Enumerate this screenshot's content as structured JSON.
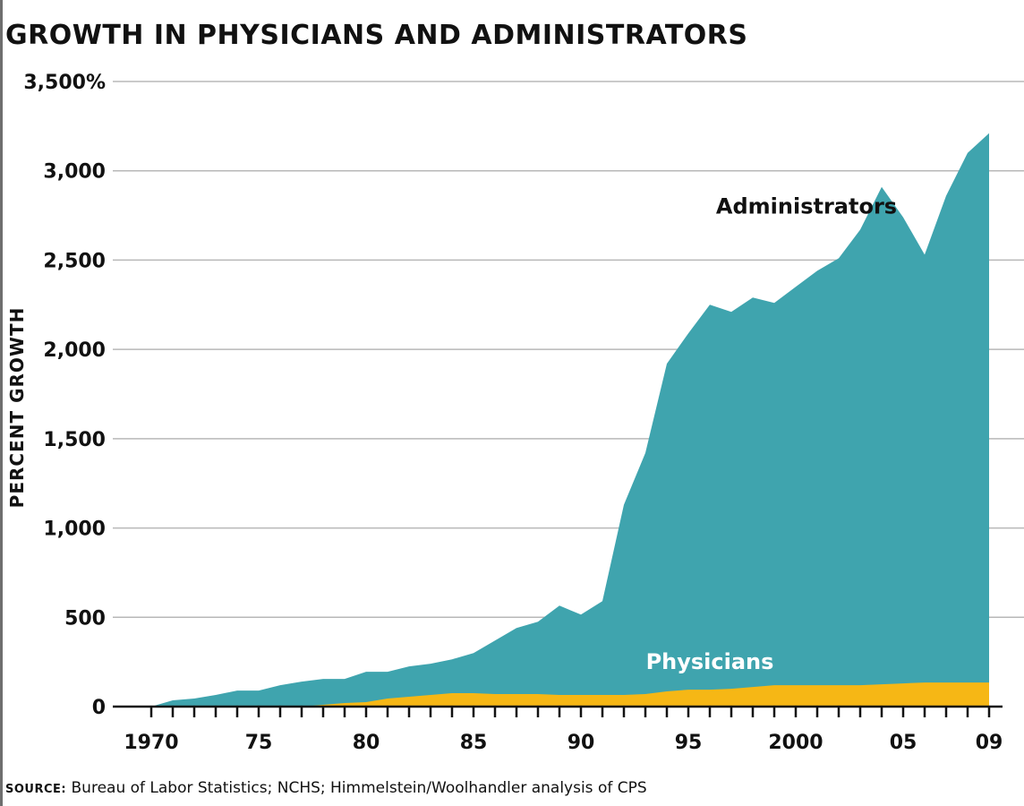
{
  "title": "GROWTH IN PHYSICIANS AND ADMINISTRATORS",
  "source": {
    "key": "SOURCE:",
    "text": "Bureau of Labor Statistics; NCHS; Himmelstein/Woolhandler analysis of CPS"
  },
  "colors": {
    "administrators": "#3fa4ae",
    "physicians": "#f6b715",
    "physicians_label": "#ffffff",
    "administrators_label": "#111111",
    "grid": "#b8b8b8",
    "axis": "#111111"
  },
  "chart_data": {
    "type": "area",
    "stacked": false,
    "title": "GROWTH IN PHYSICIANS AND ADMINISTRATORS",
    "xlabel": "",
    "ylabel": "PERCENT GROWTH",
    "xlim": [
      1970,
      2009
    ],
    "ylim": [
      0,
      3500
    ],
    "grid": true,
    "y_ticks": [
      {
        "value": 0,
        "label": "0"
      },
      {
        "value": 500,
        "label": "500"
      },
      {
        "value": 1000,
        "label": "1,000"
      },
      {
        "value": 1500,
        "label": "1,500"
      },
      {
        "value": 2000,
        "label": "2,000"
      },
      {
        "value": 2500,
        "label": "2,500"
      },
      {
        "value": 3000,
        "label": "3,000"
      },
      {
        "value": 3500,
        "label": "3,500%"
      }
    ],
    "x_ticks": [
      {
        "value": 1970,
        "label": "1970"
      },
      {
        "value": 1975,
        "label": "75"
      },
      {
        "value": 1980,
        "label": "80"
      },
      {
        "value": 1985,
        "label": "85"
      },
      {
        "value": 1990,
        "label": "90"
      },
      {
        "value": 1995,
        "label": "95"
      },
      {
        "value": 2000,
        "label": "2000"
      },
      {
        "value": 2005,
        "label": "05"
      },
      {
        "value": 2009,
        "label": "09"
      }
    ],
    "x": [
      1970,
      1971,
      1972,
      1973,
      1974,
      1975,
      1976,
      1977,
      1978,
      1979,
      1980,
      1981,
      1982,
      1983,
      1984,
      1985,
      1986,
      1987,
      1988,
      1989,
      1990,
      1991,
      1992,
      1993,
      1994,
      1995,
      1996,
      1997,
      1998,
      1999,
      2000,
      2001,
      2002,
      2003,
      2004,
      2005,
      2006,
      2007,
      2008,
      2009
    ],
    "series": [
      {
        "name": "Administrators",
        "values": [
          0,
          35,
          45,
          65,
          90,
          90,
          120,
          140,
          155,
          155,
          195,
          195,
          225,
          240,
          265,
          300,
          370,
          440,
          475,
          565,
          515,
          590,
          1130,
          1420,
          1920,
          2090,
          2250,
          2210,
          2290,
          2260,
          2350,
          2440,
          2510,
          2670,
          2910,
          2740,
          2530,
          2860,
          3100,
          3210
        ]
      },
      {
        "name": "Physicians",
        "values": [
          0,
          0,
          0,
          0,
          0,
          0,
          0,
          0,
          10,
          20,
          25,
          45,
          55,
          65,
          75,
          75,
          70,
          70,
          70,
          65,
          65,
          65,
          65,
          70,
          85,
          95,
          95,
          100,
          110,
          120,
          120,
          120,
          120,
          120,
          125,
          130,
          135,
          135,
          135,
          135
        ]
      }
    ],
    "annotations": [
      {
        "text": "Administrators",
        "series": "Administrators",
        "x": 2000.5,
        "y": 2760
      },
      {
        "text": "Physicians",
        "series": "Physicians",
        "x": 1996,
        "y": 210
      }
    ]
  }
}
